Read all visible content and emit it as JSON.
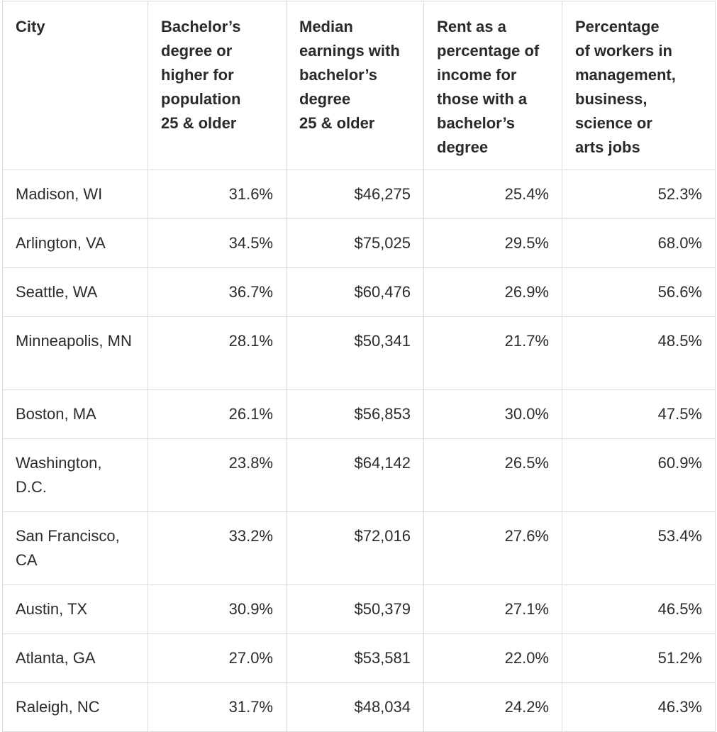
{
  "table": {
    "headers": [
      [
        "City"
      ],
      [
        "Bachelor’s",
        "degree or",
        "higher for",
        "population",
        "25 & older"
      ],
      [
        "Median",
        "earnings with",
        "bachelor’s",
        "degree",
        "25 & older"
      ],
      [
        "Rent as a",
        "percentage of",
        "income for",
        "those with a",
        "bachelor’s",
        "degree"
      ],
      [
        "Percentage",
        "of workers in",
        "management,",
        "business,",
        "science or",
        "arts jobs"
      ]
    ],
    "rows": [
      [
        "Madison, WI",
        "31.6%",
        "$46,275",
        "25.4%",
        "52.3%"
      ],
      [
        "Arlington, VA",
        "34.5%",
        "$75,025",
        "29.5%",
        "68.0%"
      ],
      [
        "Seattle, WA",
        "36.7%",
        "$60,476",
        "26.9%",
        "56.6%"
      ],
      [
        "Minneapolis, MN",
        "28.1%",
        "$50,341",
        "21.7%",
        "48.5%"
      ],
      [
        "Boston, MA",
        "26.1%",
        "$56,853",
        "30.0%",
        "47.5%"
      ],
      [
        "Washington, D.C.",
        "23.8%",
        "$64,142",
        "26.5%",
        "60.9%"
      ],
      [
        "San Francisco, CA",
        "33.2%",
        "$72,016",
        "27.6%",
        "53.4%"
      ],
      [
        "Austin, TX",
        "30.9%",
        "$50,379",
        "27.1%",
        "46.5%"
      ],
      [
        "Atlanta, GA",
        "27.0%",
        "$53,581",
        "22.0%",
        "51.2%"
      ],
      [
        "Raleigh, NC",
        "31.7%",
        "$48,034",
        "24.2%",
        "46.3%"
      ]
    ]
  },
  "colors": {
    "border": "#dcdcdc",
    "text": "#222222",
    "background": "#ffffff"
  }
}
